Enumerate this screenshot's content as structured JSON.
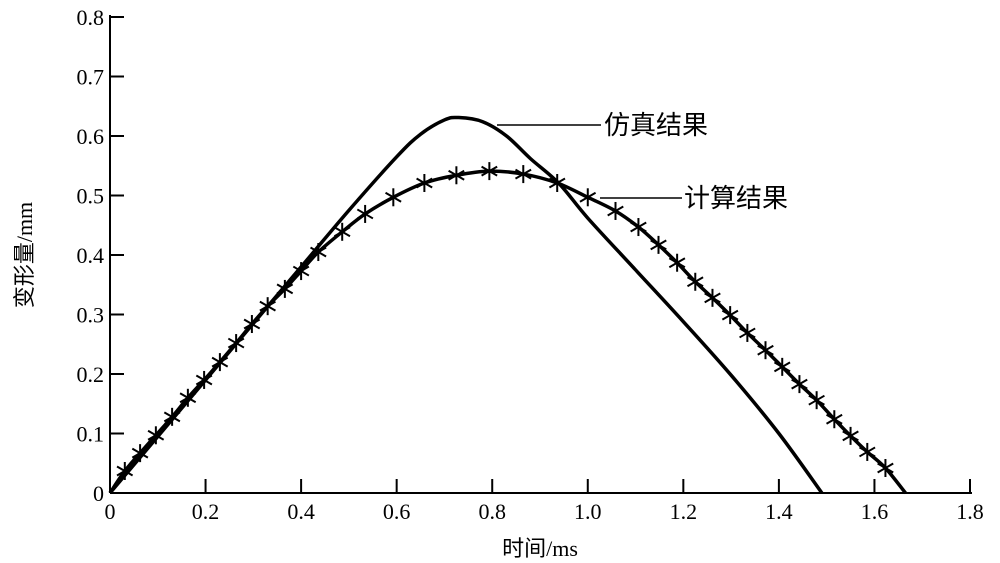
{
  "chart_data": {
    "type": "line",
    "title": "",
    "xlabel": "时间/ms",
    "ylabel": "变形量/mm",
    "xlim": [
      0,
      1.8
    ],
    "ylim": [
      0,
      0.8
    ],
    "xticks": [
      "0",
      "0.2",
      "0.4",
      "0.6",
      "0.8",
      "1.0",
      "1.2",
      "1.4",
      "1.6",
      "1.8"
    ],
    "yticks": [
      "0",
      "0.1",
      "0.2",
      "0.3",
      "0.4",
      "0.5",
      "0.6",
      "0.7",
      "0.8"
    ],
    "grid": false,
    "series": [
      {
        "name": "仿真结果",
        "marker": "none",
        "x": [
          0,
          0.2,
          0.4,
          0.5,
          0.6,
          0.65,
          0.7,
          0.73,
          0.78,
          0.83,
          0.88,
          0.94,
          1.0,
          1.1,
          1.2,
          1.3,
          1.4,
          1.49
        ],
        "y": [
          0,
          0.19,
          0.38,
          0.475,
          0.565,
          0.603,
          0.627,
          0.631,
          0.624,
          0.6,
          0.562,
          0.52,
          0.462,
          0.375,
          0.288,
          0.198,
          0.1,
          0
        ]
      },
      {
        "name": "计算结果",
        "marker": "asterisk",
        "x": [
          0,
          0.031,
          0.063,
          0.096,
          0.13,
          0.163,
          0.197,
          0.23,
          0.264,
          0.297,
          0.33,
          0.366,
          0.4,
          0.436,
          0.486,
          0.534,
          0.593,
          0.658,
          0.725,
          0.794,
          0.865,
          0.936,
          1.0,
          1.058,
          1.106,
          1.148,
          1.187,
          1.225,
          1.261,
          1.298,
          1.334,
          1.372,
          1.407,
          1.443,
          1.479,
          1.516,
          1.55,
          1.585,
          1.623,
          1.665
        ],
        "y": [
          0,
          0.037,
          0.067,
          0.097,
          0.128,
          0.16,
          0.19,
          0.22,
          0.252,
          0.284,
          0.314,
          0.343,
          0.373,
          0.405,
          0.439,
          0.469,
          0.497,
          0.521,
          0.534,
          0.541,
          0.536,
          0.521,
          0.497,
          0.474,
          0.447,
          0.417,
          0.387,
          0.355,
          0.328,
          0.299,
          0.269,
          0.24,
          0.212,
          0.183,
          0.156,
          0.124,
          0.096,
          0.069,
          0.042,
          0
        ]
      }
    ],
    "annotations": [
      "仿真结果",
      "计算结果"
    ]
  }
}
